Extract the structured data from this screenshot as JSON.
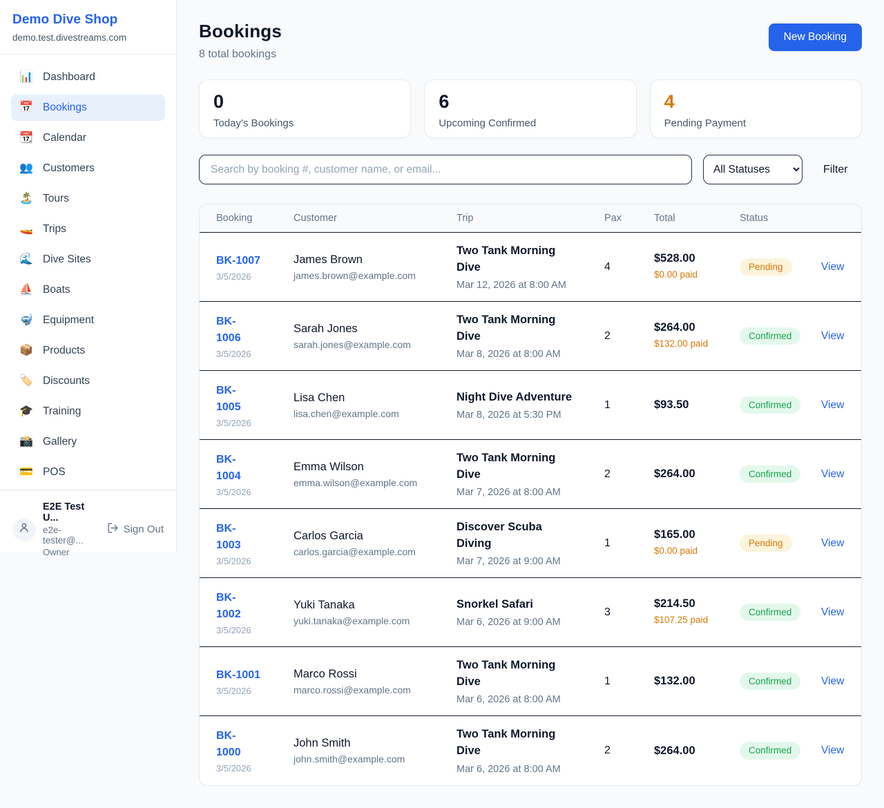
{
  "colors": {
    "brand_blue": "#2563eb",
    "pending_orange": "#d97706",
    "confirmed_green": "#16a34a",
    "page_background": "#f8fafc"
  },
  "sidebar": {
    "shop_name": "Demo Dive Shop",
    "shop_domain": "demo.test.divestreams.com",
    "items": [
      {
        "icon": "📊",
        "icon_name": "dashboard-chart-icon",
        "label": "Dashboard",
        "active": false
      },
      {
        "icon": "📅",
        "icon_name": "bookings-calendar-icon",
        "label": "Bookings",
        "active": true
      },
      {
        "icon": "📆",
        "icon_name": "calendar-icon",
        "label": "Calendar",
        "active": false
      },
      {
        "icon": "👥",
        "icon_name": "customers-icon",
        "label": "Customers",
        "active": false
      },
      {
        "icon": "🏝️",
        "icon_name": "tours-island-icon",
        "label": "Tours",
        "active": false
      },
      {
        "icon": "🚤",
        "icon_name": "trips-speedboat-icon",
        "label": "Trips",
        "active": false
      },
      {
        "icon": "🌊",
        "icon_name": "dive-sites-wave-icon",
        "label": "Dive Sites",
        "active": false
      },
      {
        "icon": "⛵",
        "icon_name": "boats-sailboat-icon",
        "label": "Boats",
        "active": false
      },
      {
        "icon": "🤿",
        "icon_name": "equipment-mask-icon",
        "label": "Equipment",
        "active": false
      },
      {
        "icon": "📦",
        "icon_name": "products-package-icon",
        "label": "Products",
        "active": false
      },
      {
        "icon": "🏷️",
        "icon_name": "discounts-tag-icon",
        "label": "Discounts",
        "active": false
      },
      {
        "icon": "🎓",
        "icon_name": "training-cap-icon",
        "label": "Training",
        "active": false
      },
      {
        "icon": "📸",
        "icon_name": "gallery-camera-icon",
        "label": "Gallery",
        "active": false
      },
      {
        "icon": "💳",
        "icon_name": "pos-card-icon",
        "label": "POS",
        "active": false
      }
    ],
    "user": {
      "name": "E2E Test U...",
      "email": "e2e-tester@...",
      "role": "Owner",
      "sign_out_label": "Sign Out"
    }
  },
  "header": {
    "title": "Bookings",
    "subtitle": "8 total bookings",
    "new_booking_label": "New Booking"
  },
  "stats": [
    {
      "value": "0",
      "label": "Today's Bookings",
      "accent": ""
    },
    {
      "value": "6",
      "label": "Upcoming Confirmed",
      "accent": ""
    },
    {
      "value": "4",
      "label": "Pending Payment",
      "accent": "#d97706"
    }
  ],
  "filters": {
    "search_placeholder": "Search by booking #, customer name, or email...",
    "status_selected": "All Statuses",
    "filter_label": "Filter"
  },
  "table": {
    "headers": [
      "Booking",
      "Customer",
      "Trip",
      "Pax",
      "Total",
      "Status"
    ],
    "rows": [
      {
        "booking_display": "BK-1007",
        "booking_date": "3/5/2026",
        "customer_name": "James Brown",
        "customer_email": "james.brown@example.com",
        "trip_name": "Two Tank Morning\nDive",
        "trip_datetime": "Mar 12, 2026 at 8:00 AM",
        "pax": "4",
        "total": "$528.00",
        "paid": "$0.00 paid",
        "status": "Pending",
        "action": "View"
      },
      {
        "booking_display": "BK-\n1006",
        "booking_date": "3/5/2026",
        "customer_name": "Sarah Jones",
        "customer_email": "sarah.jones@example.com",
        "trip_name": "Two Tank Morning\nDive",
        "trip_datetime": "Mar 8, 2026 at 8:00 AM",
        "pax": "2",
        "total": "$264.00",
        "paid": "$132.00 paid",
        "status": "Confirmed",
        "action": "View"
      },
      {
        "booking_display": "BK-\n1005",
        "booking_date": "3/5/2026",
        "customer_name": "Lisa Chen",
        "customer_email": "lisa.chen@example.com",
        "trip_name": "Night Dive Adventure",
        "trip_datetime": "Mar 8, 2026 at 5:30 PM",
        "pax": "1",
        "total": "$93.50",
        "paid": "",
        "status": "Confirmed",
        "action": "View"
      },
      {
        "booking_display": "BK-\n1004",
        "booking_date": "3/5/2026",
        "customer_name": "Emma Wilson",
        "customer_email": "emma.wilson@example.com",
        "trip_name": "Two Tank Morning\nDive",
        "trip_datetime": "Mar 7, 2026 at 8:00 AM",
        "pax": "2",
        "total": "$264.00",
        "paid": "",
        "status": "Confirmed",
        "action": "View"
      },
      {
        "booking_display": "BK-\n1003",
        "booking_date": "3/5/2026",
        "customer_name": "Carlos Garcia",
        "customer_email": "carlos.garcia@example.com",
        "trip_name": "Discover Scuba\nDiving",
        "trip_datetime": "Mar 7, 2026 at 9:00 AM",
        "pax": "1",
        "total": "$165.00",
        "paid": "$0.00 paid",
        "status": "Pending",
        "action": "View"
      },
      {
        "booking_display": "BK-\n1002",
        "booking_date": "3/5/2026",
        "customer_name": "Yuki Tanaka",
        "customer_email": "yuki.tanaka@example.com",
        "trip_name": "Snorkel Safari",
        "trip_datetime": "Mar 6, 2026 at 9:00 AM",
        "pax": "3",
        "total": "$214.50",
        "paid": "$107.25 paid",
        "status": "Confirmed",
        "action": "View"
      },
      {
        "booking_display": "BK-1001",
        "booking_date": "3/5/2026",
        "customer_name": "Marco Rossi",
        "customer_email": "marco.rossi@example.com",
        "trip_name": "Two Tank Morning\nDive",
        "trip_datetime": "Mar 6, 2026 at 8:00 AM",
        "pax": "1",
        "total": "$132.00",
        "paid": "",
        "status": "Confirmed",
        "action": "View"
      },
      {
        "booking_display": "BK-\n1000",
        "booking_date": "3/5/2026",
        "customer_name": "John Smith",
        "customer_email": "john.smith@example.com",
        "trip_name": "Two Tank Morning\nDive",
        "trip_datetime": "Mar 6, 2026 at 8:00 AM",
        "pax": "2",
        "total": "$264.00",
        "paid": "",
        "status": "Confirmed",
        "action": "View"
      }
    ]
  }
}
